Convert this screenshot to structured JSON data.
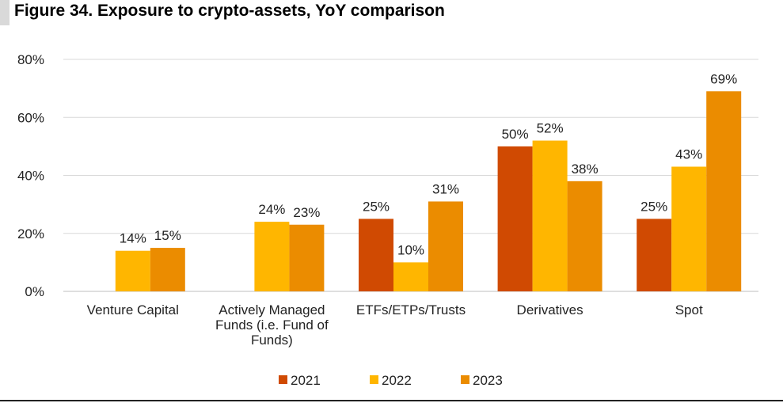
{
  "title": "Figure 34. Exposure to crypto-assets, YoY comparison",
  "chart_data": {
    "type": "bar",
    "title": "",
    "xlabel": "",
    "ylabel": "",
    "ylim": [
      0,
      80
    ],
    "yticks": [
      "0%",
      "20%",
      "40%",
      "60%",
      "80%"
    ],
    "grid": true,
    "legend_position": "bottom",
    "categories": [
      [
        "Venture Capital"
      ],
      [
        "Actively Managed",
        "Funds (i.e. Fund of",
        "Funds)"
      ],
      [
        "ETFs/ETPs/Trusts"
      ],
      [
        "Derivatives"
      ],
      [
        "Spot"
      ]
    ],
    "series": [
      {
        "name": "2021",
        "color": "#D04A02",
        "values": [
          null,
          null,
          25,
          50,
          25
        ],
        "labels": [
          "",
          "",
          "25%",
          "50%",
          "25%"
        ]
      },
      {
        "name": "2022",
        "color": "#FFB600",
        "values": [
          14,
          24,
          10,
          52,
          43
        ],
        "labels": [
          "14%",
          "24%",
          "10%",
          "52%",
          "43%"
        ]
      },
      {
        "name": "2023",
        "color": "#EB8C00",
        "values": [
          15,
          23,
          31,
          38,
          69
        ],
        "labels": [
          "15%",
          "23%",
          "31%",
          "38%",
          "69%"
        ]
      }
    ]
  }
}
